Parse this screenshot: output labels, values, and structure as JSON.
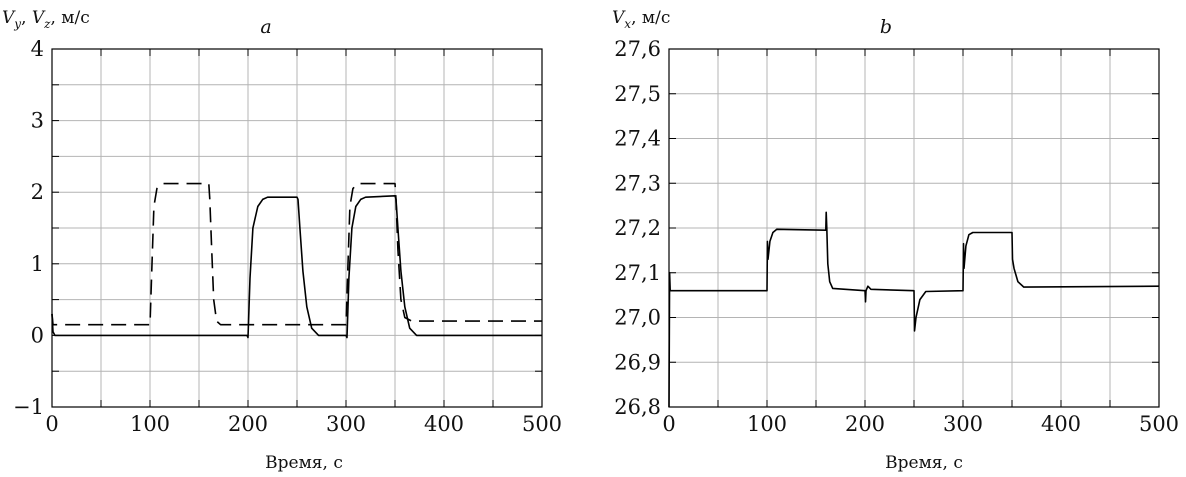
{
  "chart_data": [
    {
      "type": "line",
      "panel_label": "a",
      "ylabel_parts": [
        "V",
        "y",
        ", ",
        "V",
        "z",
        ", м/с"
      ],
      "xlabel": "Время, с",
      "xlim": [
        0,
        500
      ],
      "ylim": [
        -1,
        4
      ],
      "x_ticks": [
        0,
        100,
        200,
        300,
        400,
        500
      ],
      "x_tick_labels": [
        "0",
        "100",
        "200",
        "300",
        "400",
        "500"
      ],
      "y_ticks": [
        -1,
        0,
        1,
        2,
        3,
        4
      ],
      "y_tick_labels": [
        "−1",
        "0",
        "1",
        "2",
        "3",
        "4"
      ],
      "grid_x": [
        0,
        50,
        100,
        150,
        200,
        250,
        300,
        350,
        400,
        450,
        500
      ],
      "grid_y": [
        -1,
        -0.5,
        0,
        0.5,
        1,
        1.5,
        2,
        2.5,
        3,
        3.5,
        4
      ],
      "grid": true,
      "series": [
        {
          "style": "solid",
          "points": [
            [
              0,
              0.3
            ],
            [
              1,
              0.05
            ],
            [
              3,
              0
            ],
            [
              199,
              0
            ],
            [
              200,
              -0.03
            ],
            [
              202,
              0.8
            ],
            [
              205,
              1.5
            ],
            [
              210,
              1.8
            ],
            [
              215,
              1.9
            ],
            [
              220,
              1.93
            ],
            [
              250,
              1.93
            ],
            [
              251,
              1.9
            ],
            [
              253,
              1.5
            ],
            [
              256,
              0.9
            ],
            [
              260,
              0.4
            ],
            [
              265,
              0.1
            ],
            [
              272,
              0
            ],
            [
              300,
              0
            ],
            [
              301,
              -0.03
            ],
            [
              303,
              0.8
            ],
            [
              306,
              1.5
            ],
            [
              310,
              1.8
            ],
            [
              315,
              1.9
            ],
            [
              320,
              1.93
            ],
            [
              350,
              1.95
            ],
            [
              351,
              1.9
            ],
            [
              353,
              1.5
            ],
            [
              356,
              0.9
            ],
            [
              360,
              0.4
            ],
            [
              365,
              0.1
            ],
            [
              372,
              0
            ],
            [
              500,
              0
            ]
          ]
        },
        {
          "style": "dashed",
          "points": [
            [
              0,
              0.3
            ],
            [
              1,
              0.15
            ],
            [
              100,
              0.15
            ],
            [
              102,
              1.0
            ],
            [
              104,
              1.8
            ],
            [
              107,
              2.05
            ],
            [
              112,
              2.12
            ],
            [
              160,
              2.12
            ],
            [
              161,
              1.9
            ],
            [
              163,
              1.2
            ],
            [
              165,
              0.5
            ],
            [
              168,
              0.2
            ],
            [
              172,
              0.15
            ],
            [
              300,
              0.15
            ],
            [
              302,
              1.0
            ],
            [
              304,
              1.8
            ],
            [
              307,
              2.05
            ],
            [
              312,
              2.12
            ],
            [
              350,
              2.12
            ],
            [
              351,
              1.9
            ],
            [
              353,
              1.2
            ],
            [
              356,
              0.5
            ],
            [
              360,
              0.25
            ],
            [
              367,
              0.2
            ],
            [
              500,
              0.2
            ]
          ]
        }
      ]
    },
    {
      "type": "line",
      "panel_label": "b",
      "ylabel_parts": [
        "V",
        "x",
        ", м/с"
      ],
      "xlabel": "Время, с",
      "xlim": [
        0,
        500
      ],
      "ylim": [
        26.8,
        27.6
      ],
      "x_ticks": [
        0,
        100,
        200,
        300,
        400,
        500
      ],
      "x_tick_labels": [
        "0",
        "100",
        "200",
        "300",
        "400",
        "500"
      ],
      "y_ticks": [
        26.8,
        26.9,
        27.0,
        27.1,
        27.2,
        27.3,
        27.4,
        27.5,
        27.6
      ],
      "y_tick_labels": [
        "26,8",
        "26,9",
        "27,0",
        "27,1",
        "27,2",
        "27,3",
        "27,4",
        "27,5",
        "27,6"
      ],
      "grid_x": [
        0,
        50,
        100,
        150,
        200,
        250,
        300,
        350,
        400,
        450,
        500
      ],
      "grid_y": [
        26.8,
        26.9,
        27.0,
        27.1,
        27.2,
        27.3,
        27.4,
        27.5,
        27.6
      ],
      "grid": true,
      "series": [
        {
          "style": "solid",
          "points": [
            [
              0,
              26.8
            ],
            [
              0.6,
              27.1
            ],
            [
              1.2,
              27.06
            ],
            [
              100,
              27.06
            ],
            [
              100.4,
              27.17
            ],
            [
              101,
              27.13
            ],
            [
              103,
              27.17
            ],
            [
              106,
              27.19
            ],
            [
              110,
              27.197
            ],
            [
              160,
              27.195
            ],
            [
              160.4,
              27.235
            ],
            [
              161,
              27.2
            ],
            [
              162,
              27.12
            ],
            [
              164,
              27.08
            ],
            [
              167,
              27.065
            ],
            [
              200,
              27.06
            ],
            [
              200.5,
              27.035
            ],
            [
              201,
              27.06
            ],
            [
              203,
              27.07
            ],
            [
              206,
              27.063
            ],
            [
              250,
              27.06
            ],
            [
              250.5,
              26.97
            ],
            [
              252,
              27.0
            ],
            [
              256,
              27.04
            ],
            [
              262,
              27.058
            ],
            [
              300,
              27.06
            ],
            [
              300.5,
              27.165
            ],
            [
              301,
              27.11
            ],
            [
              303,
              27.16
            ],
            [
              306,
              27.185
            ],
            [
              310,
              27.19
            ],
            [
              350,
              27.19
            ],
            [
              350.5,
              27.13
            ],
            [
              352,
              27.11
            ],
            [
              356,
              27.08
            ],
            [
              362,
              27.068
            ],
            [
              500,
              27.07
            ]
          ]
        }
      ]
    }
  ]
}
